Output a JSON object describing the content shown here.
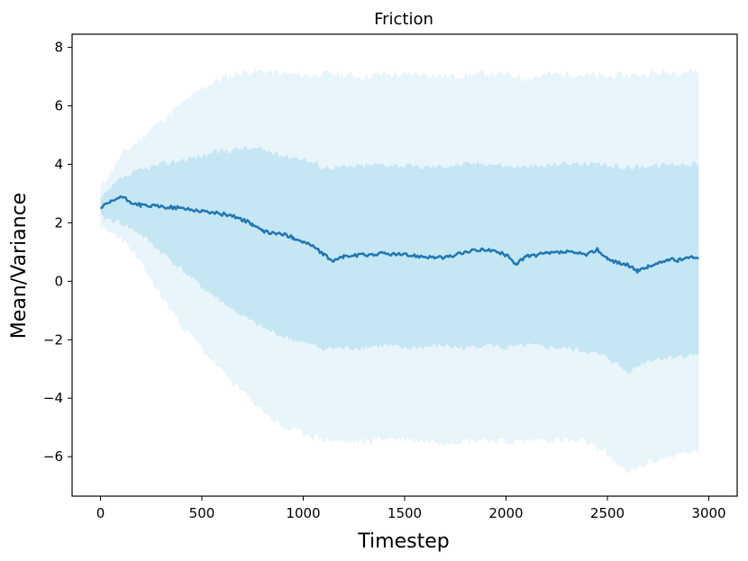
{
  "chart_data": {
    "type": "line",
    "title": "Friction",
    "xlabel": "Timestep",
    "ylabel": "Mean/Variance",
    "xlim": [
      -140,
      3140
    ],
    "ylim": [
      -7.35,
      8.45
    ],
    "xticks": [
      0,
      500,
      1000,
      1500,
      2000,
      2500,
      3000
    ],
    "yticks": [
      8,
      6,
      4,
      2,
      0,
      -2,
      -4,
      -6
    ],
    "ytick_labels": [
      "8",
      "6",
      "4",
      "2",
      "0",
      "−2",
      "−4",
      "−6"
    ],
    "grid": false,
    "colors": {
      "mean_line": "#1f77b4",
      "inner_band": "#c5e6f3",
      "outer_band": "#e8f5fa"
    },
    "series": [
      {
        "x": [
          0,
          50,
          100,
          150,
          200,
          300,
          400,
          500,
          600,
          650,
          700,
          750,
          800,
          850,
          900,
          950,
          1000,
          1050,
          1100,
          1150,
          1200,
          1300,
          1400,
          1500,
          1600,
          1700,
          1800,
          1900,
          2000,
          2050,
          2100,
          2200,
          2300,
          2400,
          2450,
          2500,
          2550,
          2600,
          2650,
          2700,
          2750,
          2800,
          2850,
          2900,
          2950
        ],
        "y": [
          2.5,
          2.7,
          2.9,
          2.7,
          2.6,
          2.55,
          2.5,
          2.4,
          2.3,
          2.25,
          2.1,
          1.95,
          1.7,
          1.65,
          1.6,
          1.5,
          1.35,
          1.2,
          0.9,
          0.7,
          0.85,
          0.9,
          0.95,
          0.9,
          0.85,
          0.8,
          1.0,
          1.1,
          0.9,
          0.6,
          0.85,
          0.95,
          1.0,
          0.9,
          1.1,
          0.75,
          0.65,
          0.55,
          0.35,
          0.5,
          0.6,
          0.75,
          0.7,
          0.85,
          0.8
        ]
      },
      {
        "x": [
          0,
          100,
          200,
          300,
          400,
          500,
          600,
          700,
          800,
          900,
          1000,
          1100,
          1200,
          1300,
          1400,
          1500,
          1600,
          1700,
          1800,
          1900,
          2000,
          2100,
          2200,
          2300,
          2400,
          2500,
          2600,
          2700,
          2800,
          2950
        ],
        "y_upper": [
          2.8,
          3.5,
          3.8,
          4.0,
          4.15,
          4.3,
          4.45,
          4.55,
          4.5,
          4.3,
          4.2,
          3.9,
          3.9,
          3.95,
          4.0,
          3.95,
          3.9,
          3.95,
          4.0,
          4.05,
          3.95,
          3.9,
          3.95,
          4.05,
          4.0,
          3.95,
          3.9,
          3.95,
          4.0,
          4.05
        ],
        "y_lower": [
          2.2,
          2.0,
          1.6,
          1.0,
          0.4,
          -0.2,
          -0.7,
          -1.2,
          -1.6,
          -1.9,
          -2.1,
          -2.3,
          -2.3,
          -2.25,
          -2.2,
          -2.3,
          -2.25,
          -2.2,
          -2.3,
          -2.15,
          -2.3,
          -2.2,
          -2.25,
          -2.3,
          -2.4,
          -2.6,
          -3.1,
          -2.7,
          -2.6,
          -2.5
        ]
      },
      {
        "x": [
          0,
          100,
          200,
          300,
          400,
          500,
          600,
          700,
          800,
          900,
          1000,
          1100,
          1200,
          1300,
          1400,
          1500,
          1600,
          1700,
          1800,
          1900,
          2000,
          2100,
          2200,
          2300,
          2400,
          2500,
          2600,
          2700,
          2800,
          2950
        ],
        "y_upper": [
          3.2,
          4.3,
          4.9,
          5.5,
          6.05,
          6.6,
          6.95,
          7.15,
          7.2,
          7.1,
          7.05,
          7.1,
          7.05,
          7.0,
          7.1,
          7.05,
          7.1,
          7.0,
          7.05,
          7.1,
          7.05,
          6.95,
          7.05,
          7.1,
          7.05,
          7.0,
          7.05,
          7.1,
          7.15,
          7.2
        ],
        "y_lower": [
          1.8,
          1.5,
          0.6,
          -0.5,
          -1.5,
          -2.3,
          -3.1,
          -3.8,
          -4.4,
          -5.0,
          -5.2,
          -5.4,
          -5.5,
          -5.5,
          -5.35,
          -5.4,
          -5.45,
          -5.5,
          -5.45,
          -5.4,
          -5.5,
          -5.45,
          -5.4,
          -5.45,
          -5.5,
          -5.9,
          -6.6,
          -6.2,
          -6.0,
          -5.8
        ]
      }
    ]
  }
}
